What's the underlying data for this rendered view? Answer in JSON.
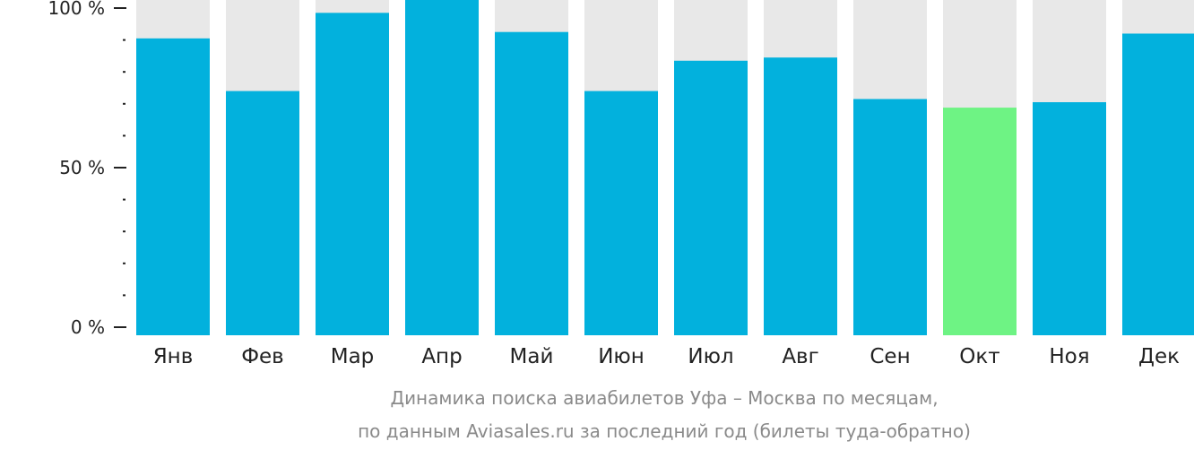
{
  "chart_data": {
    "type": "bar",
    "categories": [
      "Янв",
      "Фев",
      "Мар",
      "Апр",
      "Май",
      "Июн",
      "Июл",
      "Авг",
      "Сен",
      "Окт",
      "Ноя",
      "Дек"
    ],
    "values": [
      90.5,
      74,
      98.5,
      103,
      92.5,
      74,
      83.5,
      84.5,
      71.5,
      68.8,
      70.5,
      92
    ],
    "highlight_index": 9,
    "ylim": [
      0,
      100
    ],
    "yticks": [
      {
        "value": 0,
        "label": "0 %"
      },
      {
        "value": 50,
        "label": "50 %"
      },
      {
        "value": 100,
        "label": "100 %"
      }
    ],
    "minor_tick_step": 10,
    "colors": {
      "bar": "#02b1dd",
      "highlight": "#6ef384",
      "track": "#e8e8e8",
      "axis": "#222222"
    },
    "caption_lines": [
      "Динамика поиска авиабилетов Уфа – Москва по месяцам,",
      "по данным Aviasales.ru за последний год (билеты туда-обратно)"
    ]
  }
}
